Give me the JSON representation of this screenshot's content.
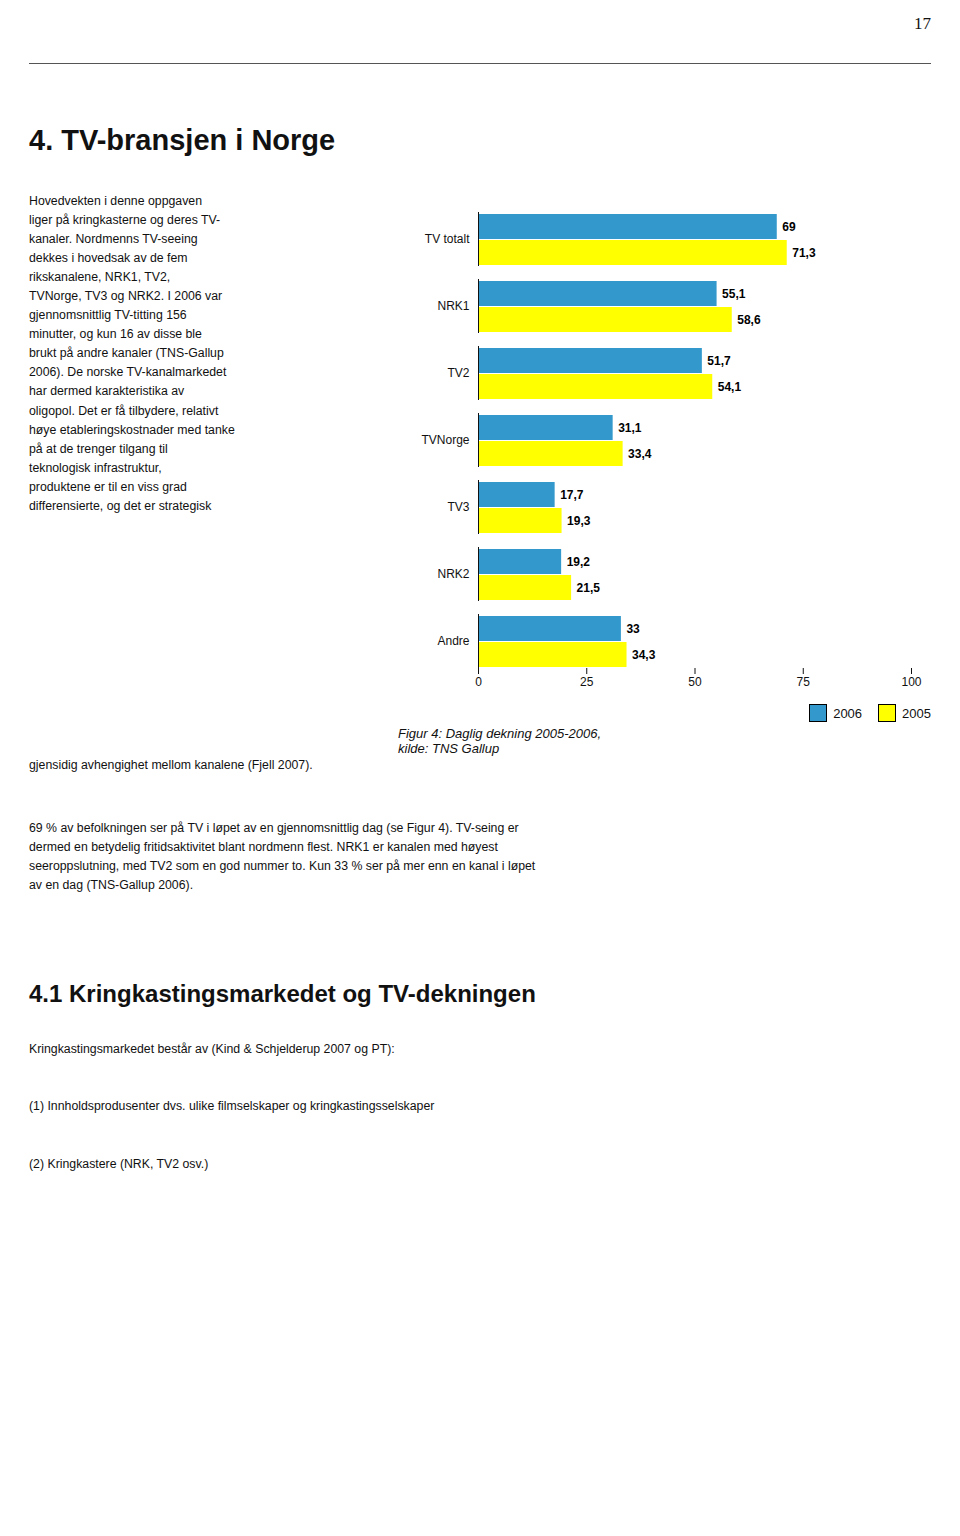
{
  "page_number": "17",
  "heading": "4.   TV-bransjen i Norge",
  "body_text_left": "Hovedvekten i denne oppgaven\nliger på kringkasterne og deres TV-\nkanaler. Nordmenns TV-seeing\ndekkes i hovedsak av de fem\nrikskanalene, NRK1, TV2,\nTVNorge, TV3 og NRK2. I 2006 var\ngjennomsnittlig TV-titting 156\nminutter, og kun 16 av disse ble\nbrukt på andre kanaler (TNS-Gallup\n2006). De norske TV-kanalmarkedet\nhar dermed karakteristika av\noligopol. Det er få tilbydere, relativt\nhøye etableringskostnader med tanke\npå at de trenger tilgang til\nteknologisk infrastruktur,\nproduktene er til en viss grad\ndifferensierte, og det er strategisk",
  "body_text_full1": "gjensidig avhengighet mellom kanalene (Fjell 2007).",
  "body_text_full2": "69 % av befolkningen ser på TV i løpet av en gjennomsnittlig dag (se Figur 4). TV-seing er\ndermed en betydelig fritidsaktivitet blant nordmenn flest. NRK1 er kanalen med høyest\nseeroppslutning, med TV2 som en god nummer to. Kun 33 % ser på mer enn en kanal i løpet\nav en dag (TNS-Gallup 2006).",
  "heading2": "4.1   Kringkastingsmarkedet og TV-dekningen",
  "body_text_full3": "Kringkastingsmarkedet består av (Kind & Schjelderup 2007 og PT):",
  "body_text_full4": "(1) Innholdsprodusenter dvs. ulike filmselskaper og kringkastingsselskaper",
  "body_text_full5": "(2) Kringkastere (NRK, TV2 osv.)",
  "chart_data": {
    "type": "bar",
    "orientation": "horizontal",
    "caption": "Figur 4: Daglig dekning 2005-2006,\nkilde: TNS Gallup",
    "categories": [
      "TV totalt",
      "NRK1",
      "TV2",
      "TVNorge",
      "TV3",
      "NRK2",
      "Andre"
    ],
    "series": [
      {
        "name": "2006",
        "color": "#3399CC",
        "values": [
          69.0,
          55.1,
          51.7,
          31.1,
          17.7,
          19.2,
          33.0
        ],
        "value_labels": [
          "69",
          "55,1",
          "51,7",
          "31,1",
          "17,7",
          "19,2",
          "33"
        ]
      },
      {
        "name": "2005",
        "color": "#FFFF00",
        "values": [
          71.3,
          58.6,
          54.1,
          33.4,
          19.3,
          21.5,
          34.3
        ],
        "value_labels": [
          "71,3",
          "58,6",
          "54,1",
          "33,4",
          "19,3",
          "21,5",
          "34,3"
        ]
      }
    ],
    "xlim": [
      0,
      100
    ],
    "xticks": [
      0,
      25,
      50,
      75,
      100
    ],
    "legend": "lower right",
    "data_labels": true,
    "grid": false
  }
}
